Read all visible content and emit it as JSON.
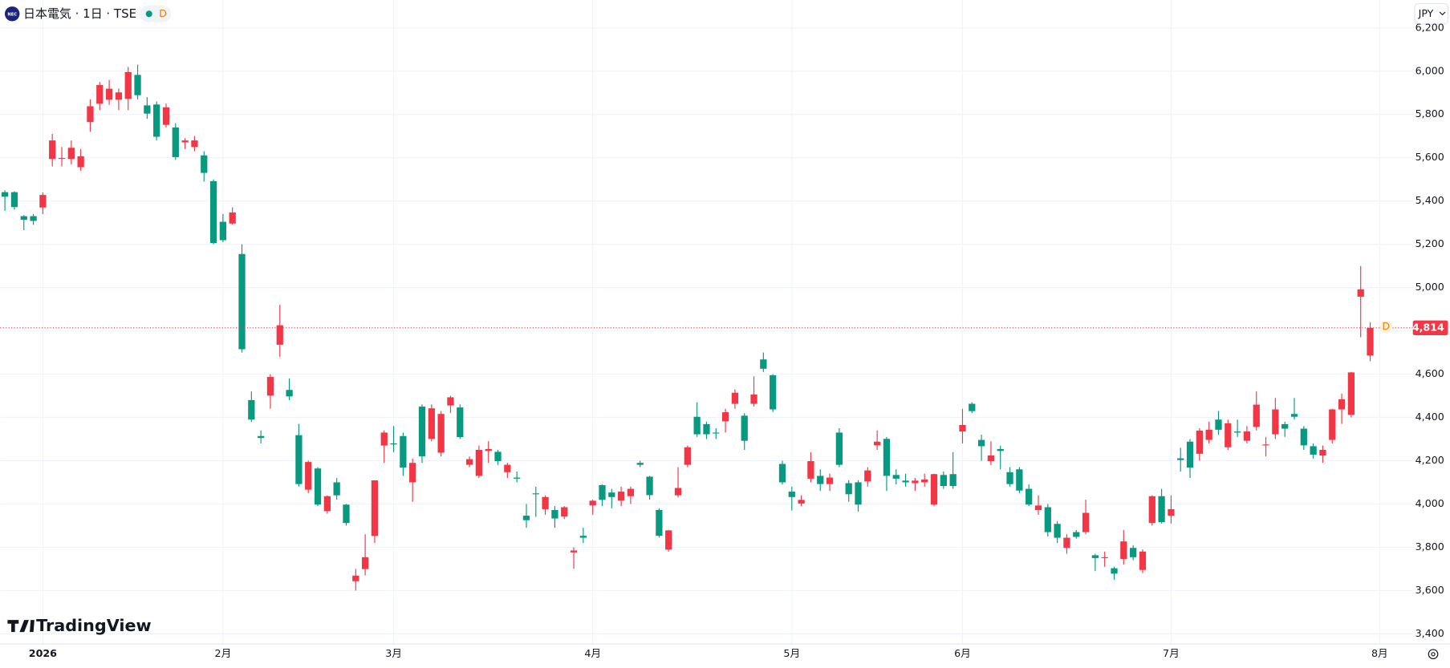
{
  "header": {
    "logo": "NEC",
    "title": "日本電気 · 1日 · TSE",
    "badge": "D"
  },
  "brand": "TradingView",
  "currency": "JPY",
  "chart_data": {
    "type": "candlestick",
    "up_color": "#f23645",
    "down_color": "#089981",
    "xlim": [
      -0.5,
      148.5
    ],
    "ylim": [
      3353,
      6329
    ],
    "xticks": [
      {
        "value": 4,
        "label": "2026"
      },
      {
        "value": 23,
        "label": "2月"
      },
      {
        "value": 41,
        "label": "3月"
      },
      {
        "value": 62,
        "label": "4月"
      },
      {
        "value": 83,
        "label": "5月"
      },
      {
        "value": 101,
        "label": "6月"
      },
      {
        "value": 123,
        "label": "7月"
      },
      {
        "value": 145,
        "label": "8月"
      }
    ],
    "yticks": [
      {
        "value": 3400,
        "label": "3,400"
      },
      {
        "value": 3600,
        "label": "3,600"
      },
      {
        "value": 3800,
        "label": "3,800"
      },
      {
        "value": 4000,
        "label": "4,000"
      },
      {
        "value": 4200,
        "label": "4,200"
      },
      {
        "value": 4400,
        "label": "4,400"
      },
      {
        "value": 4600,
        "label": "4,600"
      },
      {
        "value": 4800,
        "label": "4,800"
      },
      {
        "value": 5000,
        "label": "5,000"
      },
      {
        "value": 5200,
        "label": "5,200"
      },
      {
        "value": 5400,
        "label": "5,400"
      },
      {
        "value": 5600,
        "label": "5,600"
      },
      {
        "value": 5800,
        "label": "5,800"
      },
      {
        "value": 6000,
        "label": "6,000"
      },
      {
        "value": 6200,
        "label": "6,200"
      }
    ],
    "grid": true,
    "last_price": {
      "value": 4814,
      "label": "4,814",
      "badge": "D"
    },
    "open": [
      5441,
      5441,
      5330,
      5330,
      5370,
      5594,
      5595,
      5594,
      5556,
      5765,
      5850,
      5868,
      5868,
      5872,
      5983,
      5842,
      5846,
      5752,
      5740,
      5671,
      5650,
      5611,
      5492,
      5304,
      5296,
      5155,
      4480,
      4314,
      4501,
      4736,
      4527,
      4318,
      4066,
      4164,
      3967,
      4100,
      3997,
      3643,
      3699,
      3852,
      4270,
      4280,
      4314,
      4100,
      4450,
      4301,
      4237,
      4455,
      4446,
      4181,
      4130,
      4245,
      4241,
      4147,
      4122,
      3946,
      4049,
      3976,
      3972,
      3942,
      3776,
      3853,
      3993,
      4087,
      4053,
      4015,
      4036,
      4190,
      4126,
      3972,
      3789,
      4040,
      4181,
      4403,
      4369,
      4330,
      4382,
      4463,
      4408,
      4463,
      4668,
      4595,
      4185,
      4057,
      4002,
      4117,
      4130,
      4092,
      4330,
      4096,
      4100,
      4104,
      4271,
      4301,
      4134,
      4108,
      4096,
      4100,
      3997,
      4134,
      4138,
      4335,
      4463,
      4296,
      4198,
      4254,
      4147,
      4160,
      4070,
      3972,
      3985,
      3908,
      3797,
      3870,
      3870,
      3763,
      3750,
      3703,
      3746,
      3797,
      3695,
      3912,
      4036,
      3946,
      4211,
      4288,
      4232,
      4296,
      4390,
      4262,
      4335,
      4292,
      4356,
      4271,
      4322,
      4369,
      4416,
      4348,
      4267,
      4224,
      4296,
      4437,
      4412,
      4958,
      4686
    ],
    "high": [
      5450,
      5445,
      5335,
      5340,
      5440,
      5710,
      5650,
      5680,
      5640,
      5870,
      5950,
      5960,
      5920,
      6020,
      6030,
      5880,
      5860,
      5850,
      5760,
      5690,
      5700,
      5630,
      5500,
      5340,
      5370,
      5200,
      4520,
      4340,
      4600,
      4920,
      4580,
      4370,
      4200,
      4170,
      4040,
      4120,
      4000,
      3700,
      3860,
      4110,
      4340,
      4360,
      4330,
      4210,
      4460,
      4460,
      4430,
      4500,
      4460,
      4220,
      4270,
      4290,
      4250,
      4190,
      4150,
      4000,
      4080,
      4040,
      3990,
      3990,
      3800,
      3890,
      4020,
      4090,
      4070,
      4080,
      4080,
      4200,
      4130,
      3980,
      3880,
      4170,
      4270,
      4470,
      4380,
      4350,
      4440,
      4530,
      4420,
      4590,
      4700,
      4600,
      4200,
      4080,
      4040,
      4240,
      4160,
      4140,
      4350,
      4110,
      4110,
      4170,
      4340,
      4310,
      4160,
      4140,
      4120,
      4140,
      4140,
      4150,
      4240,
      4440,
      4470,
      4320,
      4290,
      4270,
      4170,
      4170,
      4090,
      4040,
      4000,
      3920,
      3860,
      3880,
      4020,
      3770,
      3780,
      3710,
      3880,
      3810,
      3790,
      4040,
      4070,
      4040,
      4260,
      4300,
      4350,
      4380,
      4430,
      4390,
      4390,
      4360,
      4520,
      4310,
      4490,
      4380,
      4490,
      4360,
      4280,
      4270,
      4440,
      4510,
      4610,
      5100,
      4840
    ],
    "low": [
      5355,
      5360,
      5265,
      5290,
      5340,
      5560,
      5560,
      5570,
      5540,
      5720,
      5820,
      5845,
      5820,
      5820,
      5870,
      5780,
      5680,
      5740,
      5590,
      5640,
      5630,
      5490,
      5200,
      5210,
      5290,
      4700,
      4380,
      4280,
      4440,
      4680,
      4480,
      4080,
      4050,
      3990,
      3955,
      4020,
      3900,
      3600,
      3670,
      3820,
      4190,
      4240,
      4130,
      4010,
      4190,
      4290,
      4220,
      4420,
      4300,
      4170,
      4120,
      4190,
      4180,
      4120,
      4100,
      3890,
      3940,
      3950,
      3890,
      3930,
      3700,
      3820,
      3950,
      3990,
      3980,
      3990,
      4000,
      4170,
      4020,
      3845,
      3780,
      4030,
      4170,
      4310,
      4300,
      4300,
      4330,
      4440,
      4250,
      4450,
      4610,
      4425,
      4090,
      3970,
      3990,
      4100,
      4060,
      4060,
      4170,
      4010,
      3965,
      4080,
      4250,
      4060,
      4090,
      4080,
      4060,
      4080,
      3990,
      4070,
      4070,
      4280,
      4420,
      4200,
      4180,
      4160,
      4080,
      4050,
      3990,
      3950,
      3850,
      3820,
      3770,
      3840,
      3860,
      3690,
      3710,
      3650,
      3720,
      3740,
      3680,
      3900,
      3910,
      3910,
      4150,
      4120,
      4200,
      4280,
      4320,
      4250,
      4310,
      4280,
      4340,
      4220,
      4300,
      4310,
      4390,
      4250,
      4210,
      4190,
      4280,
      4370,
      4400,
      4770,
      4660
    ],
    "close": [
      5420,
      5372,
      5313,
      5308,
      5428,
      5680,
      5599,
      5646,
      5607,
      5838,
      5936,
      5919,
      5902,
      5996,
      5889,
      5804,
      5697,
      5833,
      5603,
      5680,
      5680,
      5530,
      5206,
      5219,
      5347,
      4715,
      4390,
      4305,
      4587,
      4826,
      4497,
      4092,
      4194,
      3997,
      4036,
      4040,
      3912,
      3669,
      3754,
      4109,
      4330,
      4275,
      4168,
      4190,
      4220,
      4442,
      4416,
      4493,
      4309,
      4207,
      4250,
      4254,
      4198,
      4181,
      4117,
      3925,
      4045,
      4032,
      3933,
      3985,
      3785,
      3844,
      4015,
      4019,
      4032,
      4057,
      4070,
      4181,
      4041,
      3853,
      3878,
      4074,
      4262,
      4322,
      4322,
      4326,
      4424,
      4514,
      4292,
      4506,
      4625,
      4437,
      4100,
      4032,
      4019,
      4198,
      4092,
      4122,
      4181,
      4045,
      3997,
      4155,
      4288,
      4130,
      4117,
      4100,
      4108,
      4113,
      4138,
      4083,
      4083,
      4365,
      4429,
      4267,
      4224,
      4245,
      4092,
      4062,
      3997,
      3993,
      3870,
      3844,
      3844,
      3848,
      3959,
      3750,
      3754,
      3678,
      3827,
      3754,
      3780,
      4036,
      3916,
      3976,
      4203,
      4168,
      4339,
      4343,
      4343,
      4373,
      4330,
      4335,
      4459,
      4275,
      4437,
      4348,
      4403,
      4271,
      4228,
      4250,
      4437,
      4484,
      4608,
      4992,
      4814
    ]
  }
}
